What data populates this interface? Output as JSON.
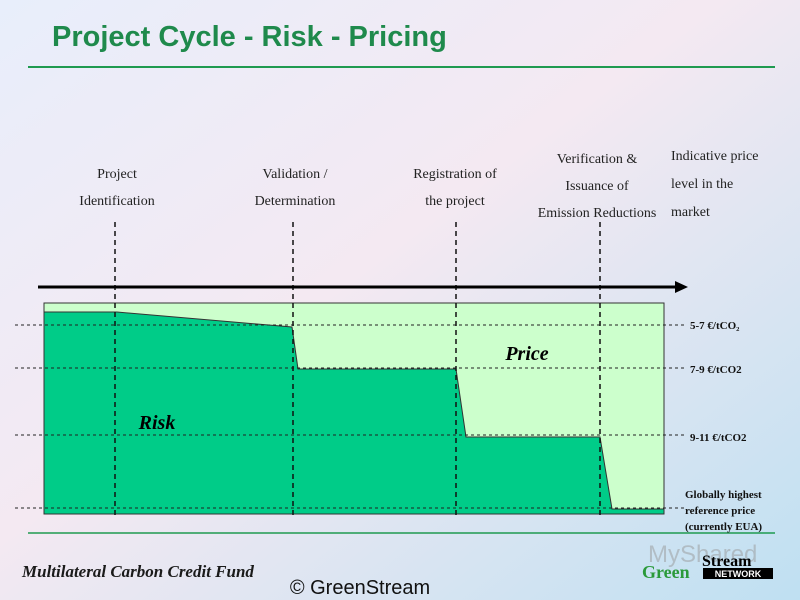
{
  "header": {
    "title": "Project Cycle -  Risk - Pricing"
  },
  "stages": [
    {
      "lines": [
        "Project",
        "Identification"
      ]
    },
    {
      "lines": [
        "Validation /",
        "Determination"
      ]
    },
    {
      "lines": [
        "Registration of",
        "the project"
      ]
    },
    {
      "lines": [
        "Verification &",
        "Issuance of",
        "Emission Reductions"
      ]
    }
  ],
  "side_note": {
    "lines": [
      "Indicative price",
      "level in the",
      "market"
    ]
  },
  "price_levels": [
    "5-7 €/tCO₂",
    "7-9 €/tCO2",
    "9-11 €/tCO2"
  ],
  "reference_note": {
    "lines": [
      "Globally highest",
      "reference price",
      "(currently EUA)"
    ]
  },
  "areas": {
    "price": "Price",
    "risk": "Risk"
  },
  "footer": {
    "fund": "Multilateral Carbon Credit Fund",
    "copyright": "© GreenStream"
  },
  "logo": {
    "green": "Green",
    "stream": "Stream",
    "network": "NETWORK"
  },
  "watermark": "MyShared"
}
